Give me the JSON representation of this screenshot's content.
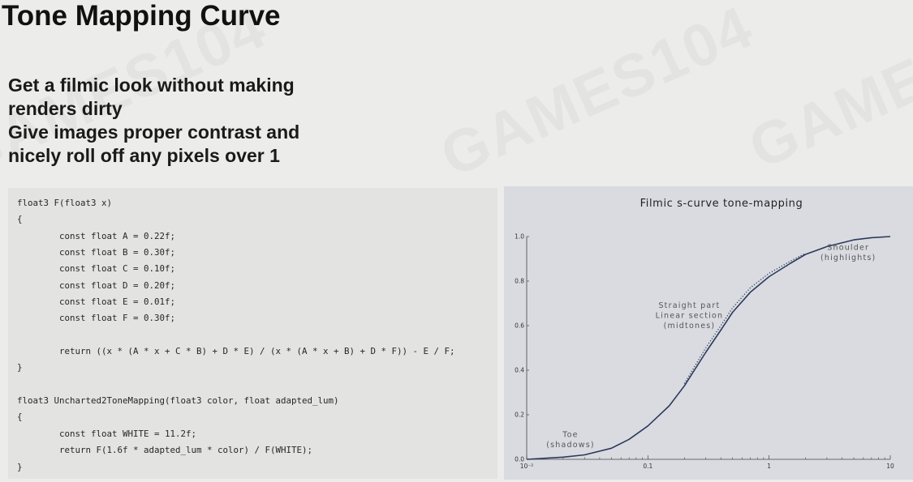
{
  "title": "Tone Mapping Curve",
  "bullets": [
    "Get a filmic look without making",
    "renders dirty",
    "Give images proper contrast and",
    "nicely roll off any pixels over 1"
  ],
  "watermark": "GAMES104",
  "code_lines": [
    "float3 F(float3 x)",
    "{",
    "\tconst float A = 0.22f;",
    "\tconst float B = 0.30f;",
    "\tconst float C = 0.10f;",
    "\tconst float D = 0.20f;",
    "\tconst float E = 0.01f;",
    "\tconst float F = 0.30f;",
    "",
    "\treturn ((x * (A * x + C * B) + D * E) / (x * (A * x + B) + D * F)) - E / F;",
    "}",
    "",
    "float3 Uncharted2ToneMapping(float3 color, float adapted_lum)",
    "{",
    "\tconst float WHITE = 11.2f;",
    "\treturn F(1.6f * adapted_lum * color) / F(WHITE);",
    "}"
  ],
  "chart_data": {
    "type": "line",
    "title": "Filmic s-curve tone-mapping",
    "x_scale": "log",
    "xlim": [
      0.01,
      10
    ],
    "ylim": [
      0,
      1.0
    ],
    "x_tick_labels": [
      "10⁻²",
      "0.1",
      "1",
      "10"
    ],
    "y_tick_labels": [
      "0.0",
      "0.2",
      "0.4",
      "0.6",
      "0.8",
      "1.0"
    ],
    "series": [
      {
        "style": "solid",
        "color": "#2c3a5c",
        "x": [
          0.01,
          0.02,
          0.03,
          0.05,
          0.07,
          0.1,
          0.15,
          0.2,
          0.3,
          0.4,
          0.5,
          0.7,
          1.0,
          1.5,
          2.0,
          3.0,
          5.0,
          7.0,
          10.0
        ],
        "y": [
          0.0,
          0.01,
          0.02,
          0.05,
          0.09,
          0.15,
          0.24,
          0.33,
          0.48,
          0.58,
          0.66,
          0.75,
          0.82,
          0.88,
          0.92,
          0.955,
          0.985,
          0.995,
          1.0
        ]
      },
      {
        "style": "dotted",
        "color": "#2c3a5c",
        "x": [
          0.2,
          0.3,
          0.4,
          0.5,
          0.7,
          1.0,
          1.5,
          2.0
        ],
        "y": [
          0.34,
          0.5,
          0.6,
          0.68,
          0.77,
          0.835,
          0.89,
          0.925
        ]
      }
    ],
    "annotations": [
      {
        "lines": [
          "Toe",
          "(shadows)"
        ],
        "x": 0.023,
        "y": 0.1
      },
      {
        "lines": [
          "Straight part",
          "Linear section",
          "(midtones)"
        ],
        "x": 0.22,
        "y": 0.68
      },
      {
        "lines": [
          "Shoulder",
          "(highlights)"
        ],
        "x": 4.5,
        "y": 0.94
      }
    ]
  }
}
